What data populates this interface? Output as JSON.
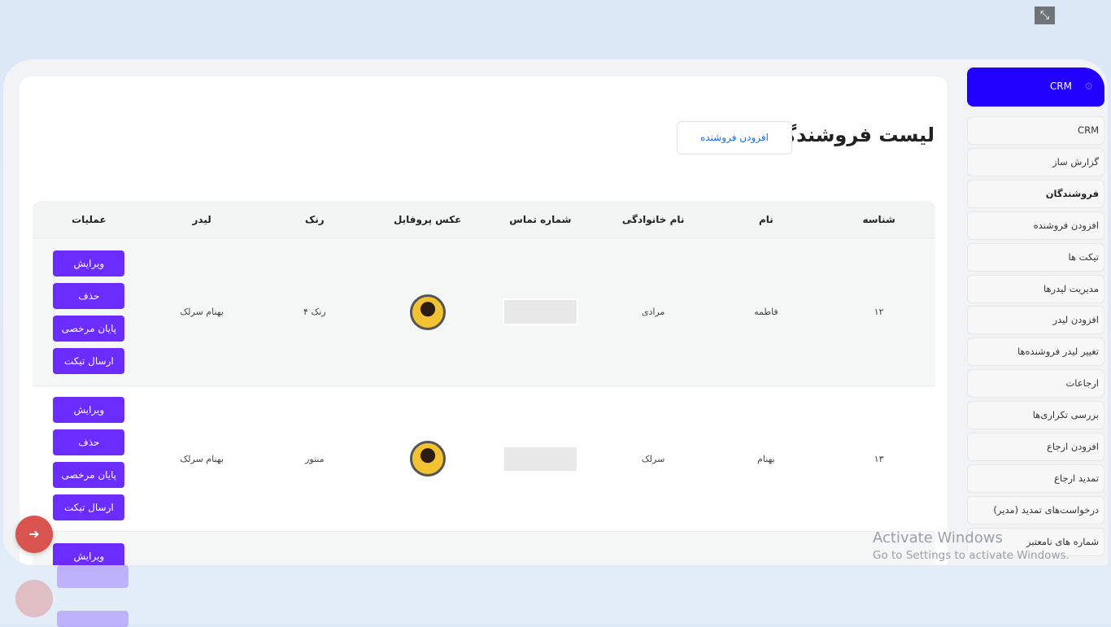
{
  "window": {
    "fullscreen_icon": "exit-fullscreen-icon"
  },
  "page": {
    "title": "لیست فروشندگان",
    "add_button": "افزودن فروشنده"
  },
  "table": {
    "headers": [
      "شناسه",
      "نام",
      "نام خانوادگی",
      "شماره تماس",
      "عکس پروفایل",
      "رنک",
      "لیدر",
      "عملیات"
    ],
    "rows": [
      {
        "id": "۱۲",
        "first_name": "فاطمه",
        "last_name": "مرادی",
        "phone": "",
        "rank": "رنک ۴",
        "leader": "بهنام سرلک"
      },
      {
        "id": "۱۳",
        "first_name": "بهنام",
        "last_name": "سرلک",
        "phone": "",
        "rank": "منتور",
        "leader": "بهنام سرلک"
      }
    ],
    "actions": {
      "edit": "ویرایش",
      "delete": "حذف",
      "end_leave": "پایان مرخصی",
      "send_ticket": "ارسال تیکت"
    }
  },
  "sidebar": {
    "header": "CRM",
    "items": [
      "CRM",
      "گزارش ساز",
      "فروشندگان",
      "افزودن فروشنده",
      "تیکت ها",
      "مدیریت لیدرها",
      "افزودن لیدر",
      "تغییر لیدر فروشنده‌ها",
      "ارجاعات",
      "بررسی تکراری‌ها",
      "افزودن ارجاع",
      "تمدید ارجاع",
      "درخواست‌های تمدید (مدیر)",
      "شماره های نامعتبر"
    ],
    "active_index": 2
  },
  "watermark": {
    "line1": "Activate Windows",
    "line2": "Go to Settings to activate Windows."
  },
  "colors": {
    "accent": "#6a2cff",
    "sidebar_active": "#2200ff",
    "logout": "#d9534f",
    "link": "#1a6cff"
  }
}
